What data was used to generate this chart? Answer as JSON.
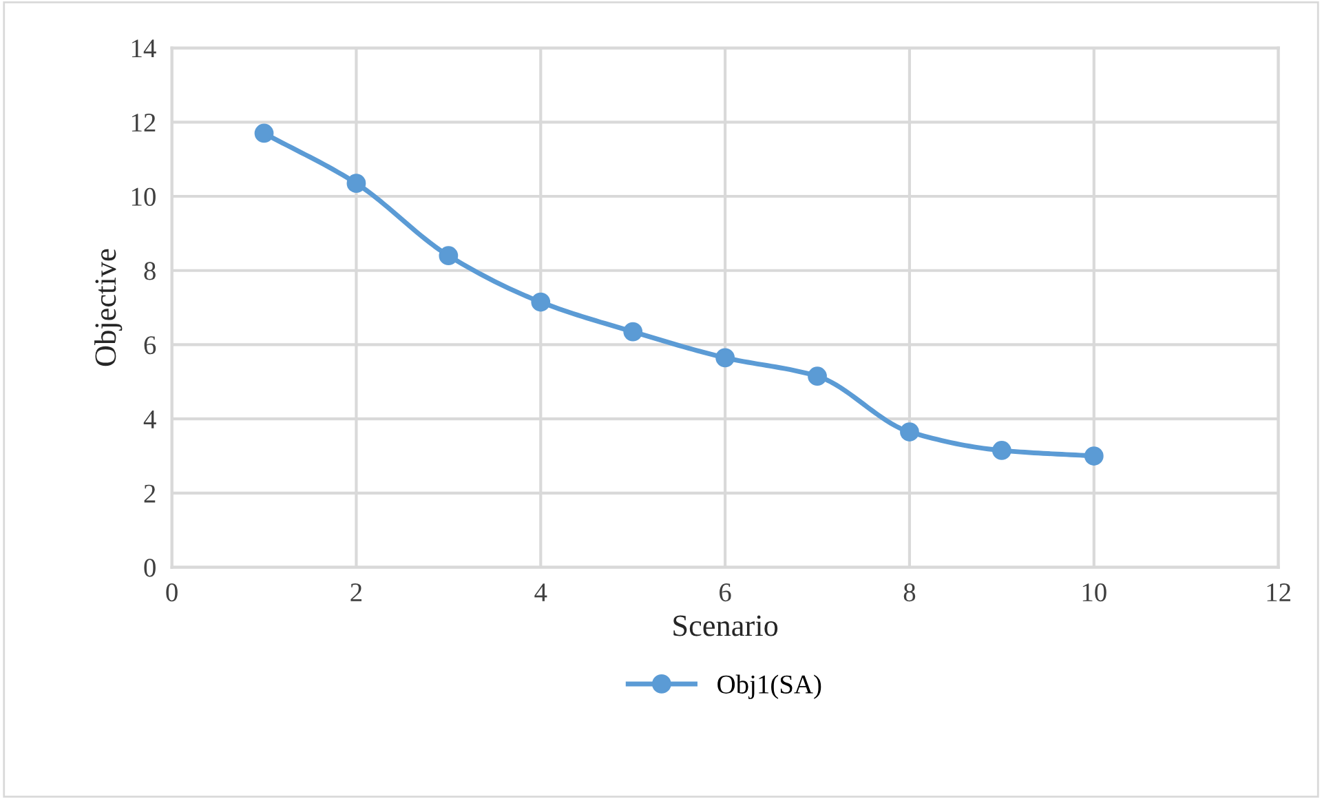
{
  "chart_data": {
    "type": "line",
    "xlabel": "Scenario",
    "ylabel": "Objective",
    "x": [
      1,
      2,
      3,
      4,
      5,
      6,
      7,
      8,
      9,
      10
    ],
    "series": [
      {
        "name": "Obj1(SA)",
        "color": "#5b9bd5",
        "values": [
          11.7,
          10.35,
          8.4,
          7.15,
          6.35,
          5.65,
          5.15,
          3.65,
          3.15,
          3.0
        ]
      }
    ],
    "xlim": [
      0,
      12
    ],
    "xticks": [
      0,
      2,
      4,
      6,
      8,
      10,
      12
    ],
    "ylim": [
      0,
      14
    ],
    "yticks": [
      0,
      2,
      4,
      6,
      8,
      10,
      12,
      14
    ],
    "grid": true,
    "legend": "bottom",
    "marker": "circle",
    "line_style": "solid"
  }
}
